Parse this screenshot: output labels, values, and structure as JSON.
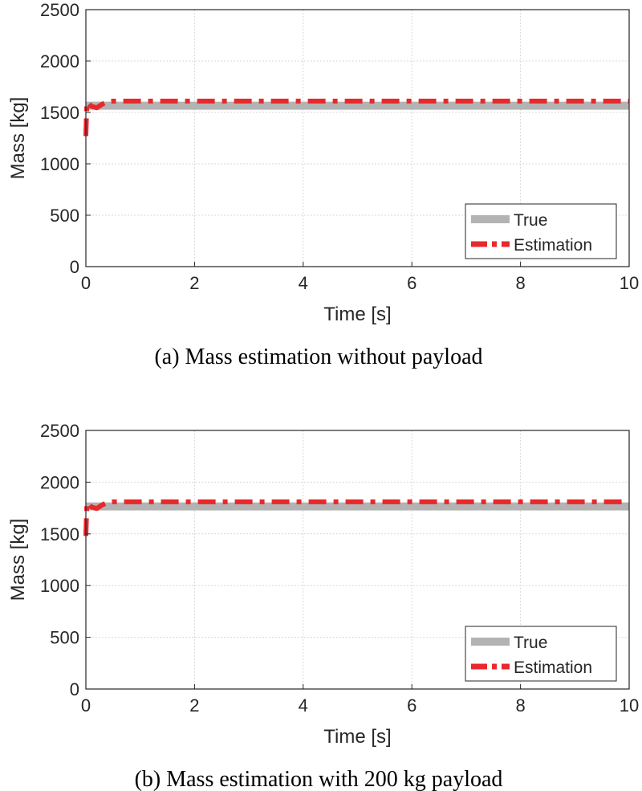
{
  "figure": {
    "captions": [
      "(a) Mass estimation without payload",
      "(b) Mass estimation with 200 kg payload"
    ]
  },
  "colors": {
    "true_line": "#b3b3b3",
    "estimation_line": "#e8282b",
    "grid": "#d9d9d9",
    "axes": "#262626"
  },
  "chart_data": [
    {
      "type": "line",
      "title": "",
      "caption": "(a) Mass estimation without payload",
      "xlabel": "Time [s]",
      "ylabel": "Mass [kg]",
      "xlim": [
        0,
        10
      ],
      "ylim": [
        0,
        2500
      ],
      "xticks": [
        0,
        2,
        4,
        6,
        8,
        10
      ],
      "yticks": [
        0,
        500,
        1000,
        1500,
        2000,
        2500
      ],
      "grid": true,
      "legend_position": "bottom-right",
      "series": [
        {
          "name": "True",
          "style": "solid",
          "x": [
            0,
            10
          ],
          "y": [
            1565,
            1565
          ]
        },
        {
          "name": "Estimation",
          "style": "dash-dot",
          "x": [
            0,
            0.01,
            0.02,
            0.05,
            0.1,
            0.2,
            0.3,
            0.4,
            0.5,
            0.7,
            1,
            10
          ],
          "y": [
            1270,
            1450,
            1600,
            1590,
            1560,
            1545,
            1580,
            1605,
            1610,
            1610,
            1610,
            1610
          ]
        }
      ]
    },
    {
      "type": "line",
      "title": "",
      "caption": "(b) Mass estimation with 200 kg payload",
      "xlabel": "Time [s]",
      "ylabel": "Mass [kg]",
      "xlim": [
        0,
        10
      ],
      "ylim": [
        0,
        2500
      ],
      "xticks": [
        0,
        2,
        4,
        6,
        8,
        10
      ],
      "yticks": [
        0,
        500,
        1000,
        1500,
        2000,
        2500
      ],
      "grid": true,
      "legend_position": "bottom-right",
      "series": [
        {
          "name": "True",
          "style": "solid",
          "x": [
            0,
            10
          ],
          "y": [
            1765,
            1765
          ]
        },
        {
          "name": "Estimation",
          "style": "dash-dot",
          "x": [
            0,
            0.01,
            0.02,
            0.05,
            0.1,
            0.2,
            0.3,
            0.4,
            0.5,
            0.7,
            1,
            10
          ],
          "y": [
            1480,
            1650,
            1800,
            1790,
            1760,
            1745,
            1780,
            1805,
            1810,
            1810,
            1810,
            1810
          ]
        }
      ]
    }
  ]
}
